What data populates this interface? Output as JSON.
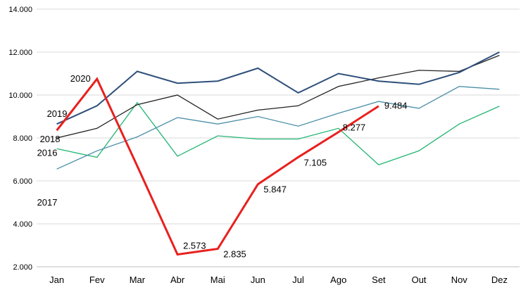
{
  "chart_data": {
    "type": "line",
    "title": "",
    "xlabel": "",
    "ylabel": "",
    "categories": [
      "Jan",
      "Fev",
      "Mar",
      "Abr",
      "Mai",
      "Jun",
      "Jul",
      "Ago",
      "Set",
      "Out",
      "Nov",
      "Dez"
    ],
    "ylim": [
      2000,
      14000
    ],
    "yticks": [
      2000,
      4000,
      6000,
      8000,
      10000,
      12000,
      14000
    ],
    "ytick_labels": [
      "2.000",
      "4.000",
      "6.000",
      "8.000",
      "10.000",
      "12.000",
      "14.000"
    ],
    "grid": true,
    "legend": "none",
    "series": [
      {
        "name": "2016",
        "color": "#22b573",
        "width": 1.3,
        "values": [
          7500,
          7100,
          9650,
          7150,
          8100,
          7950,
          7950,
          8450,
          6750,
          7400,
          8650,
          9480
        ]
      },
      {
        "name": "2017",
        "color": "#4a8fa8",
        "width": 1.3,
        "values": [
          6550,
          7400,
          8050,
          8950,
          8650,
          9000,
          8550,
          9150,
          9700,
          9380,
          10400,
          10270
        ]
      },
      {
        "name": "2018",
        "color": "#222222",
        "width": 1.3,
        "values": [
          8000,
          8450,
          9550,
          10000,
          8880,
          9300,
          9500,
          10400,
          10800,
          11150,
          11100,
          11850
        ]
      },
      {
        "name": "2019",
        "color": "#2e4f7a",
        "width": 2,
        "values": [
          8650,
          9500,
          11100,
          10550,
          10650,
          11250,
          10100,
          11000,
          10650,
          10500,
          11050,
          12000
        ]
      },
      {
        "name": "2020",
        "color": "#e8201e",
        "width": 3,
        "values": [
          8350,
          10750,
          6700,
          2573,
          2835,
          5847,
          7105,
          8277,
          9484,
          null,
          null,
          null
        ]
      }
    ],
    "data_labels": [
      {
        "category": "Abr",
        "value": 2573,
        "text": "2.573"
      },
      {
        "category": "Mai",
        "value": 2835,
        "text": "2.835"
      },
      {
        "category": "Jun",
        "value": 5847,
        "text": "5.847"
      },
      {
        "category": "Jul",
        "value": 7105,
        "text": "7.105"
      },
      {
        "category": "Ago",
        "value": 8277,
        "text": "8.277"
      },
      {
        "category": "Set",
        "value": 9484,
        "text": "9.484"
      }
    ]
  }
}
